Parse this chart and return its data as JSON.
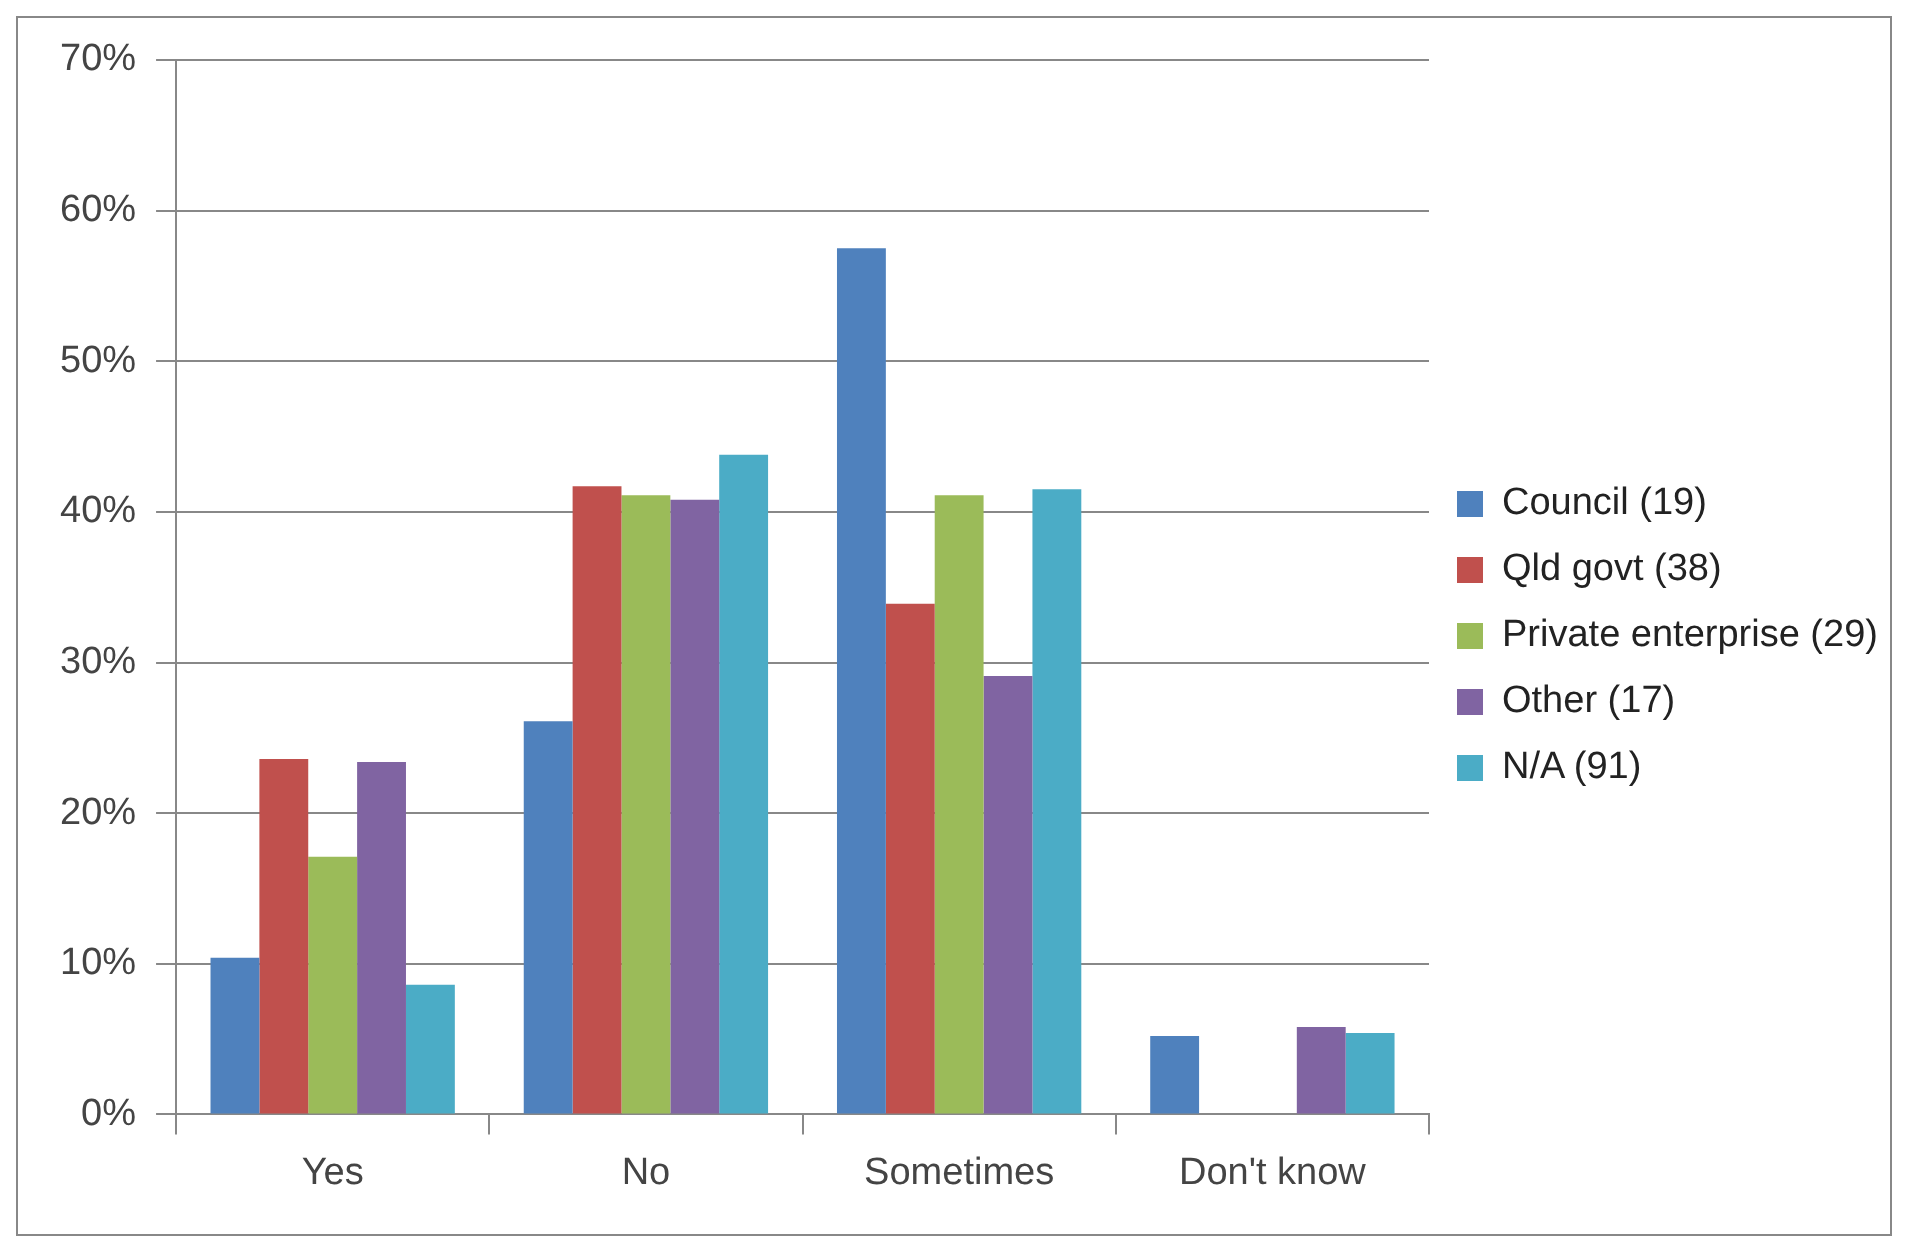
{
  "chart_data": {
    "type": "bar",
    "categories": [
      "Yes",
      "No",
      "Sometimes",
      "Don't know"
    ],
    "series": [
      {
        "name": "Council (19)",
        "color": "#4f81bd",
        "values": [
          10.4,
          26.1,
          57.5,
          5.2
        ]
      },
      {
        "name": "Qld govt (38)",
        "color": "#c0504d",
        "values": [
          23.6,
          41.7,
          33.9,
          0
        ]
      },
      {
        "name": "Private enterprise (29)",
        "color": "#9bbb59",
        "values": [
          17.1,
          41.1,
          41.1,
          0
        ]
      },
      {
        "name": "Other (17)",
        "color": "#8064a2",
        "values": [
          23.4,
          40.8,
          29.1,
          5.8
        ]
      },
      {
        "name": "N/A (91)",
        "color": "#4bacc6",
        "values": [
          8.6,
          43.8,
          41.5,
          5.4
        ]
      }
    ],
    "ylim": [
      0,
      70
    ],
    "yticks": [
      {
        "value": 0,
        "label": "0%"
      },
      {
        "value": 10,
        "label": "10%"
      },
      {
        "value": 20,
        "label": "20%"
      },
      {
        "value": 30,
        "label": "30%"
      },
      {
        "value": 40,
        "label": "40%"
      },
      {
        "value": 50,
        "label": "50%"
      },
      {
        "value": 60,
        "label": "60%"
      },
      {
        "value": 70,
        "label": "70%"
      }
    ],
    "grid": "y",
    "legend": "right"
  }
}
